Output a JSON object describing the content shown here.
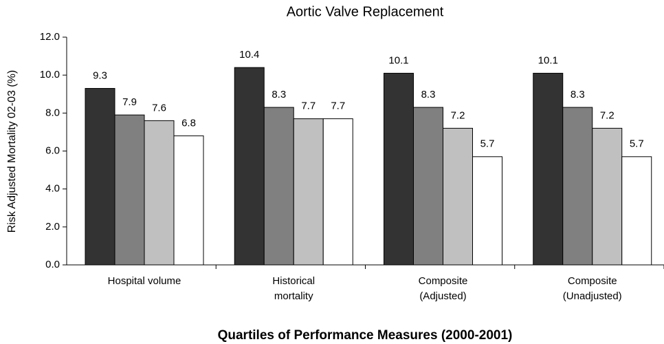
{
  "chart_data": {
    "type": "bar",
    "title": "Aortic Valve Replacement",
    "xlabel": "Quartiles of Performance Measures (2000-2001)",
    "ylabel": "Risk Adjusted Mortality 02-03 (%)",
    "categories": [
      "Hospital volume",
      "Historical mortality",
      "Composite (Adjusted)",
      "Composite (Unadjusted)"
    ],
    "series": [
      {
        "color": "#333333",
        "values": [
          9.3,
          10.4,
          10.1,
          10.1
        ]
      },
      {
        "color": "#808080",
        "values": [
          7.9,
          8.3,
          8.3,
          8.3
        ]
      },
      {
        "color": "#c0c0c0",
        "values": [
          7.6,
          7.7,
          7.2,
          7.2
        ]
      },
      {
        "color": "#ffffff",
        "values": [
          6.8,
          7.7,
          5.7,
          5.7
        ]
      }
    ],
    "ylim": [
      0,
      12
    ],
    "yticks": [
      {
        "value": 0,
        "label": "0.0"
      },
      {
        "value": 2,
        "label": "2.0"
      },
      {
        "value": 4,
        "label": "4.0"
      },
      {
        "value": 6,
        "label": "6.0"
      },
      {
        "value": 8,
        "label": "8.0"
      },
      {
        "value": 10,
        "label": "10.0"
      },
      {
        "value": 12,
        "label": "12.0"
      }
    ],
    "grid": false,
    "data_labels": true
  }
}
